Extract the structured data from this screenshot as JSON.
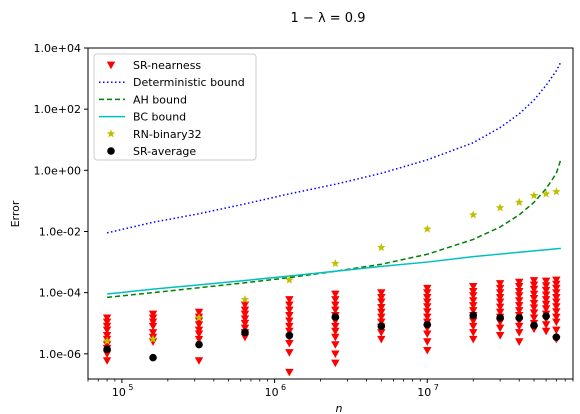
{
  "chart_data": {
    "type": "scatter",
    "title": "1 − λ = 0.9",
    "xlabel": "n",
    "ylabel": "Error",
    "xscale": "log",
    "yscale": "log",
    "xlim": [
      60000,
      90000000
    ],
    "ylim": [
      1.5e-07,
      10000.0
    ],
    "x_ticks": [
      {
        "value": 100000,
        "base": "10",
        "exp": "5"
      },
      {
        "value": 1000000,
        "base": "10",
        "exp": "6"
      },
      {
        "value": 10000000,
        "base": "10",
        "exp": "7"
      }
    ],
    "y_ticks": [
      {
        "value": 1e-06,
        "label": "1.0e-06"
      },
      {
        "value": 0.0001,
        "label": "1.0e-04"
      },
      {
        "value": 0.01,
        "label": "1.0e-02"
      },
      {
        "value": 1,
        "label": "1.0e+00"
      },
      {
        "value": 100,
        "label": "1.0e+02"
      },
      {
        "value": 10000,
        "label": "1.0e+04"
      }
    ],
    "grid": false,
    "legend_position": "top-left",
    "series": [
      {
        "name": "SR-nearness",
        "style": "markers",
        "marker": "triangle-down",
        "color": "#ff0000",
        "points": [
          [
            80000,
            1.5e-05
          ],
          [
            80000,
            1.1e-05
          ],
          [
            80000,
            8e-06
          ],
          [
            80000,
            6e-06
          ],
          [
            80000,
            4e-06
          ],
          [
            80000,
            3e-06
          ],
          [
            80000,
            2e-06
          ],
          [
            80000,
            1.5e-06
          ],
          [
            80000,
            1e-06
          ],
          [
            80000,
            6e-07
          ],
          [
            160000,
            2e-05
          ],
          [
            160000,
            1.5e-05
          ],
          [
            160000,
            1.1e-05
          ],
          [
            160000,
            8e-06
          ],
          [
            160000,
            5e-06
          ],
          [
            160000,
            3.5e-06
          ],
          [
            160000,
            2.5e-06
          ],
          [
            320000,
            2.3e-05
          ],
          [
            320000,
            1.6e-05
          ],
          [
            320000,
            1.2e-05
          ],
          [
            320000,
            9e-06
          ],
          [
            320000,
            6e-06
          ],
          [
            320000,
            4.5e-06
          ],
          [
            320000,
            3e-06
          ],
          [
            320000,
            6e-07
          ],
          [
            640000,
            4e-05
          ],
          [
            640000,
            2.7e-05
          ],
          [
            640000,
            2e-05
          ],
          [
            640000,
            1.4e-05
          ],
          [
            640000,
            1e-05
          ],
          [
            640000,
            7e-06
          ],
          [
            640000,
            5e-06
          ],
          [
            640000,
            3.5e-06
          ],
          [
            1250000,
            6e-05
          ],
          [
            1250000,
            4e-05
          ],
          [
            1250000,
            2.7e-05
          ],
          [
            1250000,
            1.8e-05
          ],
          [
            1250000,
            1.2e-05
          ],
          [
            1250000,
            8e-06
          ],
          [
            1250000,
            5.5e-06
          ],
          [
            1250000,
            3.5e-06
          ],
          [
            1250000,
            2.2e-06
          ],
          [
            1250000,
            1.1e-06
          ],
          [
            1250000,
            2.5e-07
          ],
          [
            2500000,
            9e-05
          ],
          [
            2500000,
            6e-05
          ],
          [
            2500000,
            4e-05
          ],
          [
            2500000,
            2.7e-05
          ],
          [
            2500000,
            1.8e-05
          ],
          [
            2500000,
            1.2e-05
          ],
          [
            2500000,
            8e-06
          ],
          [
            2500000,
            5.5e-06
          ],
          [
            2500000,
            3.5e-06
          ],
          [
            2500000,
            2e-06
          ],
          [
            2500000,
            1e-06
          ],
          [
            2500000,
            5e-07
          ],
          [
            5000000,
            0.0001
          ],
          [
            5000000,
            7e-05
          ],
          [
            5000000,
            5e-05
          ],
          [
            5000000,
            3.3e-05
          ],
          [
            5000000,
            2.3e-05
          ],
          [
            5000000,
            1.6e-05
          ],
          [
            5000000,
            1.1e-05
          ],
          [
            5000000,
            7.5e-06
          ],
          [
            5000000,
            5e-06
          ],
          [
            5000000,
            3e-06
          ],
          [
            10000000,
            0.00014
          ],
          [
            10000000,
            0.0001
          ],
          [
            10000000,
            7e-05
          ],
          [
            10000000,
            5e-05
          ],
          [
            10000000,
            3.5e-05
          ],
          [
            10000000,
            2.4e-05
          ],
          [
            10000000,
            1.6e-05
          ],
          [
            10000000,
            1.1e-05
          ],
          [
            10000000,
            7e-06
          ],
          [
            10000000,
            4.5e-06
          ],
          [
            10000000,
            2.5e-06
          ],
          [
            10000000,
            1.3e-06
          ],
          [
            20000000,
            0.00016
          ],
          [
            20000000,
            0.00011
          ],
          [
            20000000,
            8e-05
          ],
          [
            20000000,
            5.5e-05
          ],
          [
            20000000,
            3.8e-05
          ],
          [
            20000000,
            2.6e-05
          ],
          [
            20000000,
            1.8e-05
          ],
          [
            20000000,
            1.2e-05
          ],
          [
            20000000,
            8e-06
          ],
          [
            20000000,
            5e-06
          ],
          [
            20000000,
            3e-06
          ],
          [
            30000000,
            0.0002
          ],
          [
            30000000,
            0.00014
          ],
          [
            30000000,
            0.0001
          ],
          [
            30000000,
            7e-05
          ],
          [
            30000000,
            5e-05
          ],
          [
            30000000,
            3.4e-05
          ],
          [
            30000000,
            2.3e-05
          ],
          [
            30000000,
            1.6e-05
          ],
          [
            30000000,
            1.1e-05
          ],
          [
            30000000,
            7e-06
          ],
          [
            30000000,
            4e-06
          ],
          [
            40000000,
            0.00022
          ],
          [
            40000000,
            0.00016
          ],
          [
            40000000,
            0.00011
          ],
          [
            40000000,
            8e-05
          ],
          [
            40000000,
            5.5e-05
          ],
          [
            40000000,
            3.8e-05
          ],
          [
            40000000,
            2.6e-05
          ],
          [
            40000000,
            1.8e-05
          ],
          [
            40000000,
            1.2e-05
          ],
          [
            40000000,
            8e-06
          ],
          [
            40000000,
            5e-06
          ],
          [
            40000000,
            2.5e-06
          ],
          [
            50000000,
            0.00025
          ],
          [
            50000000,
            0.00018
          ],
          [
            50000000,
            0.00013
          ],
          [
            50000000,
            9e-05
          ],
          [
            50000000,
            6.5e-05
          ],
          [
            50000000,
            4.5e-05
          ],
          [
            50000000,
            3.2e-05
          ],
          [
            50000000,
            2.2e-05
          ],
          [
            50000000,
            1.5e-05
          ],
          [
            50000000,
            1e-05
          ],
          [
            50000000,
            6.5e-06
          ],
          [
            60000000,
            0.00024
          ],
          [
            60000000,
            0.00017
          ],
          [
            60000000,
            0.00012
          ],
          [
            60000000,
            8.5e-05
          ],
          [
            60000000,
            6e-05
          ],
          [
            60000000,
            4.2e-05
          ],
          [
            60000000,
            3e-05
          ],
          [
            60000000,
            2e-05
          ],
          [
            60000000,
            1.4e-05
          ],
          [
            60000000,
            9e-06
          ],
          [
            60000000,
            5.5e-06
          ],
          [
            70000000,
            0.00026
          ],
          [
            70000000,
            0.00019
          ],
          [
            70000000,
            0.00014
          ],
          [
            70000000,
            0.0001
          ],
          [
            70000000,
            7e-05
          ],
          [
            70000000,
            5e-05
          ],
          [
            70000000,
            3.5e-05
          ],
          [
            70000000,
            2.4e-05
          ],
          [
            70000000,
            1.6e-05
          ],
          [
            70000000,
            1.1e-05
          ],
          [
            70000000,
            6e-06
          ],
          [
            70000000,
            3e-06
          ]
        ]
      },
      {
        "name": "Deterministic bound",
        "style": "dotted",
        "color": "#0000ff",
        "points": [
          [
            80000,
            0.009
          ],
          [
            160000,
            0.02
          ],
          [
            320000,
            0.038
          ],
          [
            640000,
            0.08
          ],
          [
            1250000,
            0.17
          ],
          [
            2500000,
            0.35
          ],
          [
            5000000,
            0.8
          ],
          [
            10000000,
            2.2
          ],
          [
            20000000,
            8
          ],
          [
            30000000,
            25
          ],
          [
            40000000,
            70
          ],
          [
            50000000,
            200
          ],
          [
            60000000,
            600
          ],
          [
            70000000,
            1800
          ],
          [
            75000000,
            3500
          ]
        ]
      },
      {
        "name": "AH bound",
        "style": "dashed",
        "color": "#008000",
        "points": [
          [
            80000,
            7e-05
          ],
          [
            160000,
            0.0001
          ],
          [
            320000,
            0.000145
          ],
          [
            640000,
            0.00021
          ],
          [
            1250000,
            0.00031
          ],
          [
            2500000,
            0.0005
          ],
          [
            5000000,
            0.00085
          ],
          [
            10000000,
            0.0018
          ],
          [
            20000000,
            0.0055
          ],
          [
            30000000,
            0.014
          ],
          [
            40000000,
            0.035
          ],
          [
            50000000,
            0.09
          ],
          [
            60000000,
            0.25
          ],
          [
            70000000,
            0.8
          ],
          [
            75000000,
            2.3
          ]
        ]
      },
      {
        "name": "BC bound",
        "style": "solid",
        "color": "#00bfbf",
        "points": [
          [
            80000,
            9e-05
          ],
          [
            160000,
            0.00013
          ],
          [
            320000,
            0.00018
          ],
          [
            640000,
            0.00025
          ],
          [
            1250000,
            0.00035
          ],
          [
            2500000,
            0.0005
          ],
          [
            5000000,
            0.00072
          ],
          [
            10000000,
            0.001
          ],
          [
            20000000,
            0.0015
          ],
          [
            40000000,
            0.0021
          ],
          [
            75000000,
            0.0028
          ]
        ]
      },
      {
        "name": "RN-binary32",
        "style": "markers",
        "marker": "star",
        "color": "#bfbf00",
        "points": [
          [
            80000,
            2.6e-06
          ],
          [
            160000,
            3e-06
          ],
          [
            320000,
            1.5e-05
          ],
          [
            640000,
            6e-05
          ],
          [
            1250000,
            0.00026
          ],
          [
            2500000,
            0.0009
          ],
          [
            5000000,
            0.003
          ],
          [
            10000000,
            0.012
          ],
          [
            20000000,
            0.035
          ],
          [
            30000000,
            0.06
          ],
          [
            40000000,
            0.09
          ],
          [
            50000000,
            0.15
          ],
          [
            60000000,
            0.17
          ],
          [
            70000000,
            0.2
          ]
        ]
      },
      {
        "name": "SR-average",
        "style": "markers",
        "marker": "circle",
        "color": "#000000",
        "points": [
          [
            80000,
            1.4e-06
          ],
          [
            160000,
            7.5e-07
          ],
          [
            320000,
            2e-06
          ],
          [
            640000,
            5e-06
          ],
          [
            1250000,
            4e-06
          ],
          [
            2500000,
            1.6e-05
          ],
          [
            5000000,
            8e-06
          ],
          [
            10000000,
            9e-06
          ],
          [
            20000000,
            1.8e-05
          ],
          [
            30000000,
            1.5e-05
          ],
          [
            40000000,
            1.5e-05
          ],
          [
            50000000,
            8.5e-06
          ],
          [
            60000000,
            1.7e-05
          ],
          [
            70000000,
            3.5e-06
          ]
        ]
      }
    ]
  }
}
